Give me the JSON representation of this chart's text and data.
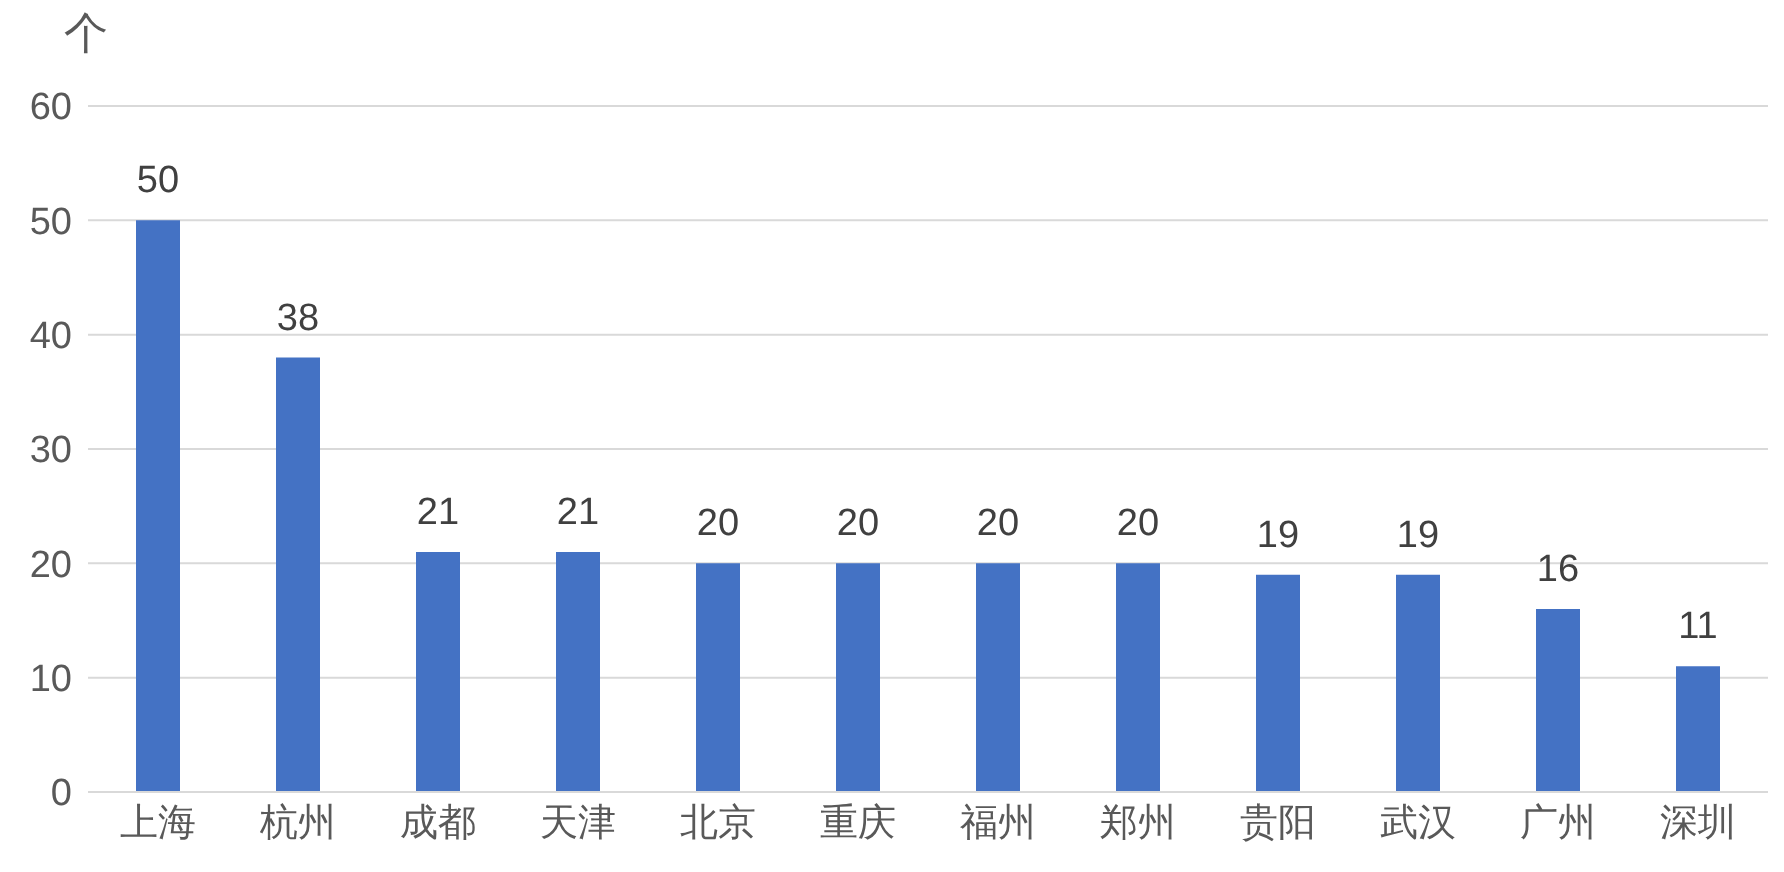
{
  "chart_data": {
    "type": "bar",
    "ylabel": "个",
    "categories": [
      "上海",
      "杭州",
      "成都",
      "天津",
      "北京",
      "重庆",
      "福州",
      "郑州",
      "贵阳",
      "武汉",
      "广州",
      "深圳"
    ],
    "values": [
      50,
      38,
      21,
      21,
      20,
      20,
      20,
      20,
      19,
      19,
      16,
      11
    ],
    "color": "#4472c4",
    "ylim": [
      0,
      60
    ],
    "yticks": [
      0,
      10,
      20,
      30,
      40,
      50,
      60
    ],
    "grid": "y",
    "data_labels": true
  }
}
